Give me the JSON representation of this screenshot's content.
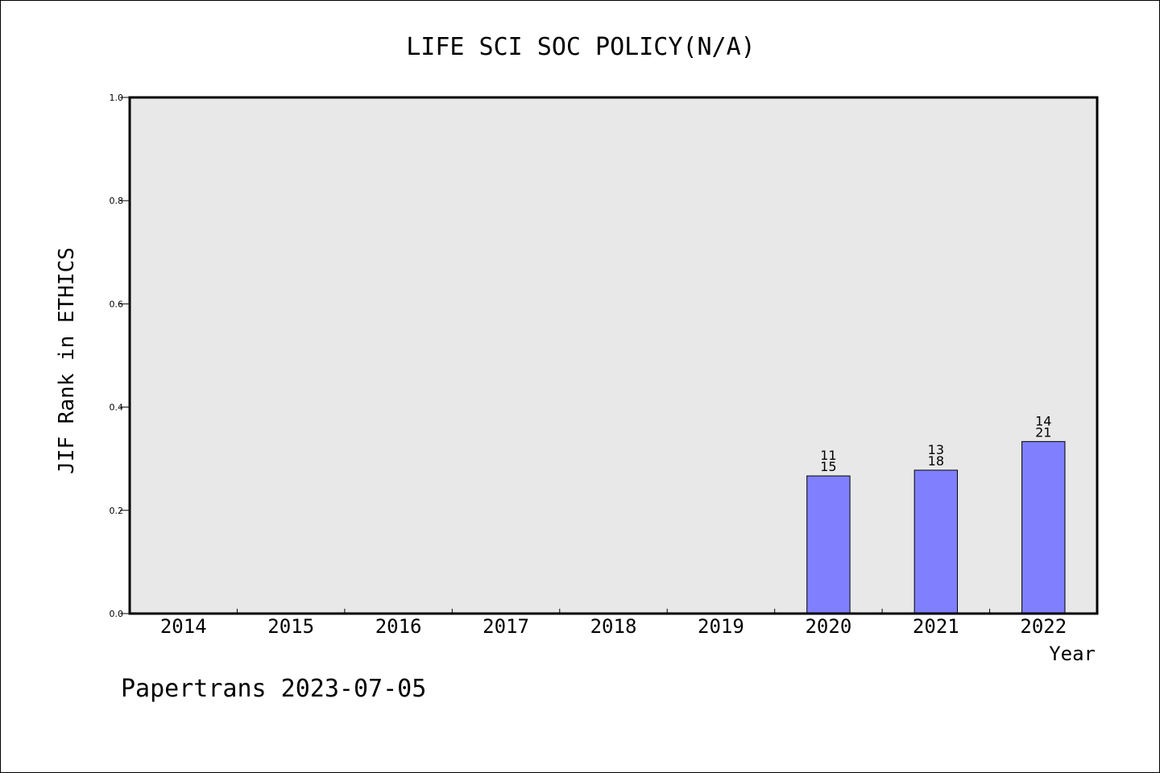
{
  "chart_data": {
    "type": "bar",
    "title": "LIFE SCI SOC POLICY(N/A)",
    "xlabel": "Year",
    "ylabel": "JIF Rank in ETHICS",
    "categories": [
      "2014",
      "2015",
      "2016",
      "2017",
      "2018",
      "2019",
      "2020",
      "2021",
      "2022"
    ],
    "values": [
      null,
      null,
      null,
      null,
      null,
      null,
      0.2667,
      0.2778,
      0.3333
    ],
    "data_labels": [
      null,
      null,
      null,
      null,
      null,
      null,
      {
        "rank": "11",
        "total": "15"
      },
      {
        "rank": "13",
        "total": "18"
      },
      {
        "rank": "14",
        "total": "21"
      }
    ],
    "ylim": [
      0,
      1.0
    ],
    "yticks": [
      "0.0",
      "0.2",
      "0.4",
      "0.6",
      "0.8",
      "1.0"
    ],
    "grid": false,
    "bar_color": "#8080ff",
    "plot_background": "#e8e8e8"
  },
  "footer": {
    "text": "Papertrans 2023-07-05"
  }
}
